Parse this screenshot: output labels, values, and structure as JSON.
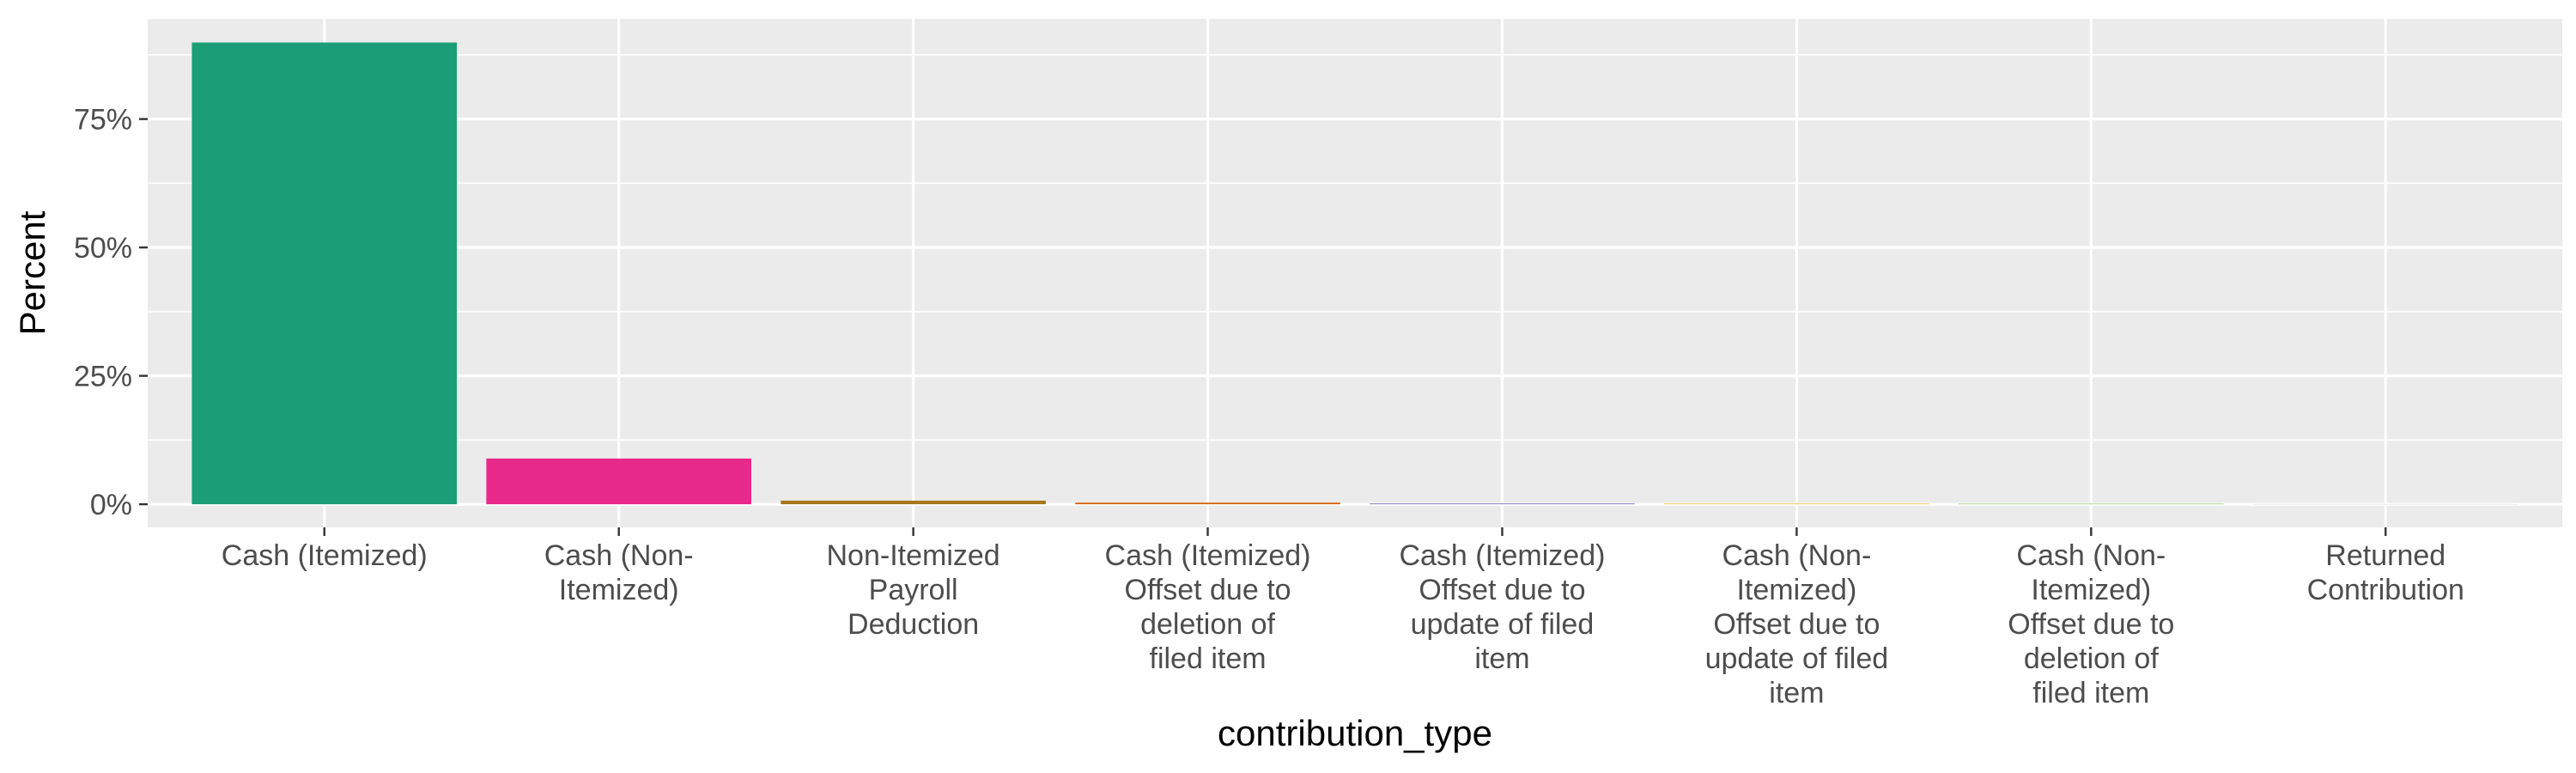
{
  "chart_data": {
    "type": "bar",
    "xlabel": "contribution_type",
    "ylabel": "Percent",
    "ylim": [
      -4.5,
      94.5
    ],
    "yticks": [
      0,
      25,
      50,
      75
    ],
    "ytick_labels": [
      "0%",
      "25%",
      "50%",
      "75%"
    ],
    "grid": true,
    "legend": "none",
    "categories": [
      "Cash (Itemized)",
      "Cash (Non-Itemized)",
      "Non-Itemized Payroll Deduction",
      "Cash (Itemized) Offset due to deletion of filed item",
      "Cash (Itemized) Offset due to update of filed item",
      "Cash (Non-Itemized) Offset due to update of filed item",
      "Cash (Non-Itemized) Offset due to deletion of filed item",
      "Returned Contribution"
    ],
    "category_label_lines": [
      [
        "Cash (Itemized)"
      ],
      [
        "Cash (Non-",
        "Itemized)"
      ],
      [
        "Non-Itemized",
        "Payroll",
        "Deduction"
      ],
      [
        "Cash (Itemized)",
        "Offset due to",
        "deletion of",
        "filed item"
      ],
      [
        "Cash (Itemized)",
        "Offset due to",
        "update of filed",
        "item"
      ],
      [
        "Cash (Non-",
        "Itemized)",
        "Offset due to",
        "update of filed",
        "item"
      ],
      [
        "Cash (Non-",
        "Itemized)",
        "Offset due to",
        "deletion of",
        "filed item"
      ],
      [
        "Returned",
        "Contribution"
      ]
    ],
    "values": [
      89.9,
      8.9,
      0.7,
      0.3,
      0.15,
      0.1,
      0.08,
      0.02
    ],
    "colors": [
      "#1B9E77",
      "#E7298A",
      "#A6761D",
      "#D95F02",
      "#7570B3",
      "#E6AB02",
      "#66A61E",
      "#666666"
    ],
    "panel_background": "#EBEBEB",
    "gridline_color": "#FFFFFF"
  }
}
